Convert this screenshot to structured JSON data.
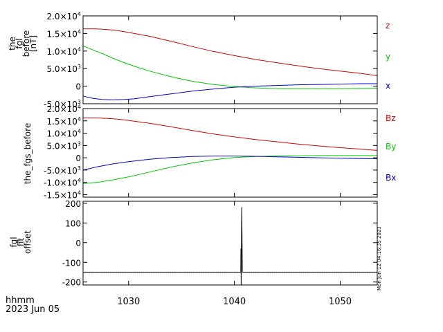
{
  "chart_data": [
    {
      "type": "line",
      "ylabel_lines": [
        "the",
        "fgl",
        "before",
        "[nT]"
      ],
      "ylim": [
        -5000,
        20000
      ],
      "y_ticks": [
        {
          "value": 20000,
          "mant": "2.0×10",
          "exp": "4"
        },
        {
          "value": 15000,
          "mant": "1.5×10",
          "exp": "4"
        },
        {
          "value": 10000,
          "mant": "1.0×10",
          "exp": "4"
        },
        {
          "value": 5000,
          "mant": "5.0×10",
          "exp": "3"
        },
        {
          "value": 0,
          "mant": "0",
          "exp": ""
        },
        {
          "value": -5000,
          "mant": "-5.0×10",
          "exp": "3"
        }
      ],
      "series": [
        {
          "name": "z",
          "color": "#d40000",
          "x": [
            1025.7,
            1027,
            1028,
            1029,
            1030,
            1032,
            1034,
            1036,
            1038,
            1040,
            1042,
            1044,
            1046,
            1048,
            1050,
            1052,
            1053.5
          ],
          "values": [
            16300,
            16300,
            16100,
            15800,
            15300,
            14200,
            12800,
            11300,
            9900,
            8700,
            7600,
            6700,
            5800,
            5000,
            4300,
            3600,
            3000
          ]
        },
        {
          "name": "y",
          "color": "#00cc00",
          "x": [
            1025.7,
            1026.5,
            1027.5,
            1028.5,
            1029.5,
            1030.5,
            1032,
            1034,
            1036,
            1038,
            1040,
            1042,
            1044,
            1046,
            1048,
            1050,
            1052,
            1053.5
          ],
          "values": [
            11500,
            10500,
            9300,
            8000,
            6800,
            5700,
            4300,
            2700,
            1400,
            500,
            -100,
            -500,
            -700,
            -700,
            -700,
            -700,
            -650,
            -600
          ]
        },
        {
          "name": "x",
          "color": "#0000cc",
          "x": [
            1025.7,
            1026.5,
            1027.5,
            1028.5,
            1029.5,
            1030.5,
            1032,
            1034,
            1036,
            1038,
            1040,
            1042,
            1044,
            1046,
            1048,
            1050,
            1052,
            1053.5
          ],
          "values": [
            -2800,
            -3400,
            -3800,
            -3900,
            -3800,
            -3600,
            -3000,
            -2200,
            -1400,
            -800,
            -300,
            0,
            200,
            400,
            500,
            600,
            700,
            700
          ]
        }
      ]
    },
    {
      "type": "line",
      "ylabel_lines": [
        "the_fgs_before"
      ],
      "ylim": [
        -16000,
        20000
      ],
      "y_ticks": [
        {
          "value": 20000,
          "mant": "2.0×10",
          "exp": "4"
        },
        {
          "value": 15000,
          "mant": "1.5×10",
          "exp": "4"
        },
        {
          "value": 10000,
          "mant": "1.0×10",
          "exp": "4"
        },
        {
          "value": 5000,
          "mant": "5.0×10",
          "exp": "3"
        },
        {
          "value": 0,
          "mant": "0",
          "exp": ""
        },
        {
          "value": -5000,
          "mant": "-5.0×10",
          "exp": "3"
        },
        {
          "value": -10000,
          "mant": "-1.0×10",
          "exp": "4"
        },
        {
          "value": -15000,
          "mant": "-1.5×10",
          "exp": "4"
        }
      ],
      "series": [
        {
          "name": "Bz",
          "color": "#d40000",
          "x": [
            1025.7,
            1027,
            1028,
            1029,
            1030,
            1032,
            1034,
            1036,
            1038,
            1040,
            1042,
            1044,
            1046,
            1048,
            1050,
            1052,
            1053.5
          ],
          "values": [
            16200,
            16200,
            16000,
            15700,
            15200,
            14000,
            12600,
            11100,
            9700,
            8500,
            7400,
            6500,
            5600,
            4800,
            4100,
            3500,
            3000
          ]
        },
        {
          "name": "By",
          "color": "#00cc00",
          "x": [
            1025.7,
            1027,
            1028.5,
            1030,
            1032,
            1034,
            1036,
            1038,
            1040,
            1042,
            1044,
            1046,
            1048,
            1050,
            1052,
            1053.5
          ],
          "values": [
            -10500,
            -10000,
            -9000,
            -7800,
            -5800,
            -3800,
            -2100,
            -800,
            100,
            500,
            700,
            800,
            900,
            900,
            900,
            900
          ]
        },
        {
          "name": "Bx",
          "color": "#0000cc",
          "x": [
            1025.7,
            1027,
            1028.5,
            1030,
            1032,
            1034,
            1036,
            1038,
            1040,
            1042,
            1044,
            1046,
            1048,
            1050,
            1052,
            1053.5
          ],
          "values": [
            -5000,
            -3700,
            -2500,
            -1600,
            -600,
            100,
            500,
            700,
            700,
            600,
            400,
            200,
            0,
            -200,
            -300,
            -400
          ]
        }
      ]
    },
    {
      "type": "line",
      "ylabel_lines": [
        "fgl",
        "fit",
        "offset"
      ],
      "ylim": [
        -215,
        210
      ],
      "y_ticks": [
        {
          "value": 200,
          "mant": "200",
          "exp": ""
        },
        {
          "value": 100,
          "mant": "100",
          "exp": ""
        },
        {
          "value": 0,
          "mant": "0",
          "exp": ""
        },
        {
          "value": -100,
          "mant": "-100",
          "exp": ""
        },
        {
          "value": -200,
          "mant": "-200",
          "exp": ""
        }
      ],
      "series": [
        {
          "name": "",
          "color": "#000000",
          "x": [
            1025.7,
            1040.6,
            1040.62,
            1040.64,
            1040.66,
            1040.7,
            1040.75,
            1040.8,
            1053.5
          ],
          "values": [
            -150,
            -150,
            -30,
            -215,
            -60,
            180,
            -150,
            -150,
            -150
          ]
        }
      ]
    }
  ],
  "x_axis": {
    "xlim": [
      1025.7,
      1053.5
    ],
    "ticks": [
      {
        "value": 1030,
        "label": "1030"
      },
      {
        "value": 1040,
        "label": "1040"
      },
      {
        "value": 1050,
        "label": "1050"
      }
    ],
    "label": "hhmm",
    "date": "2023 Jun 05"
  },
  "timestamp": "Mon Jun 12 04:16:35 2023"
}
